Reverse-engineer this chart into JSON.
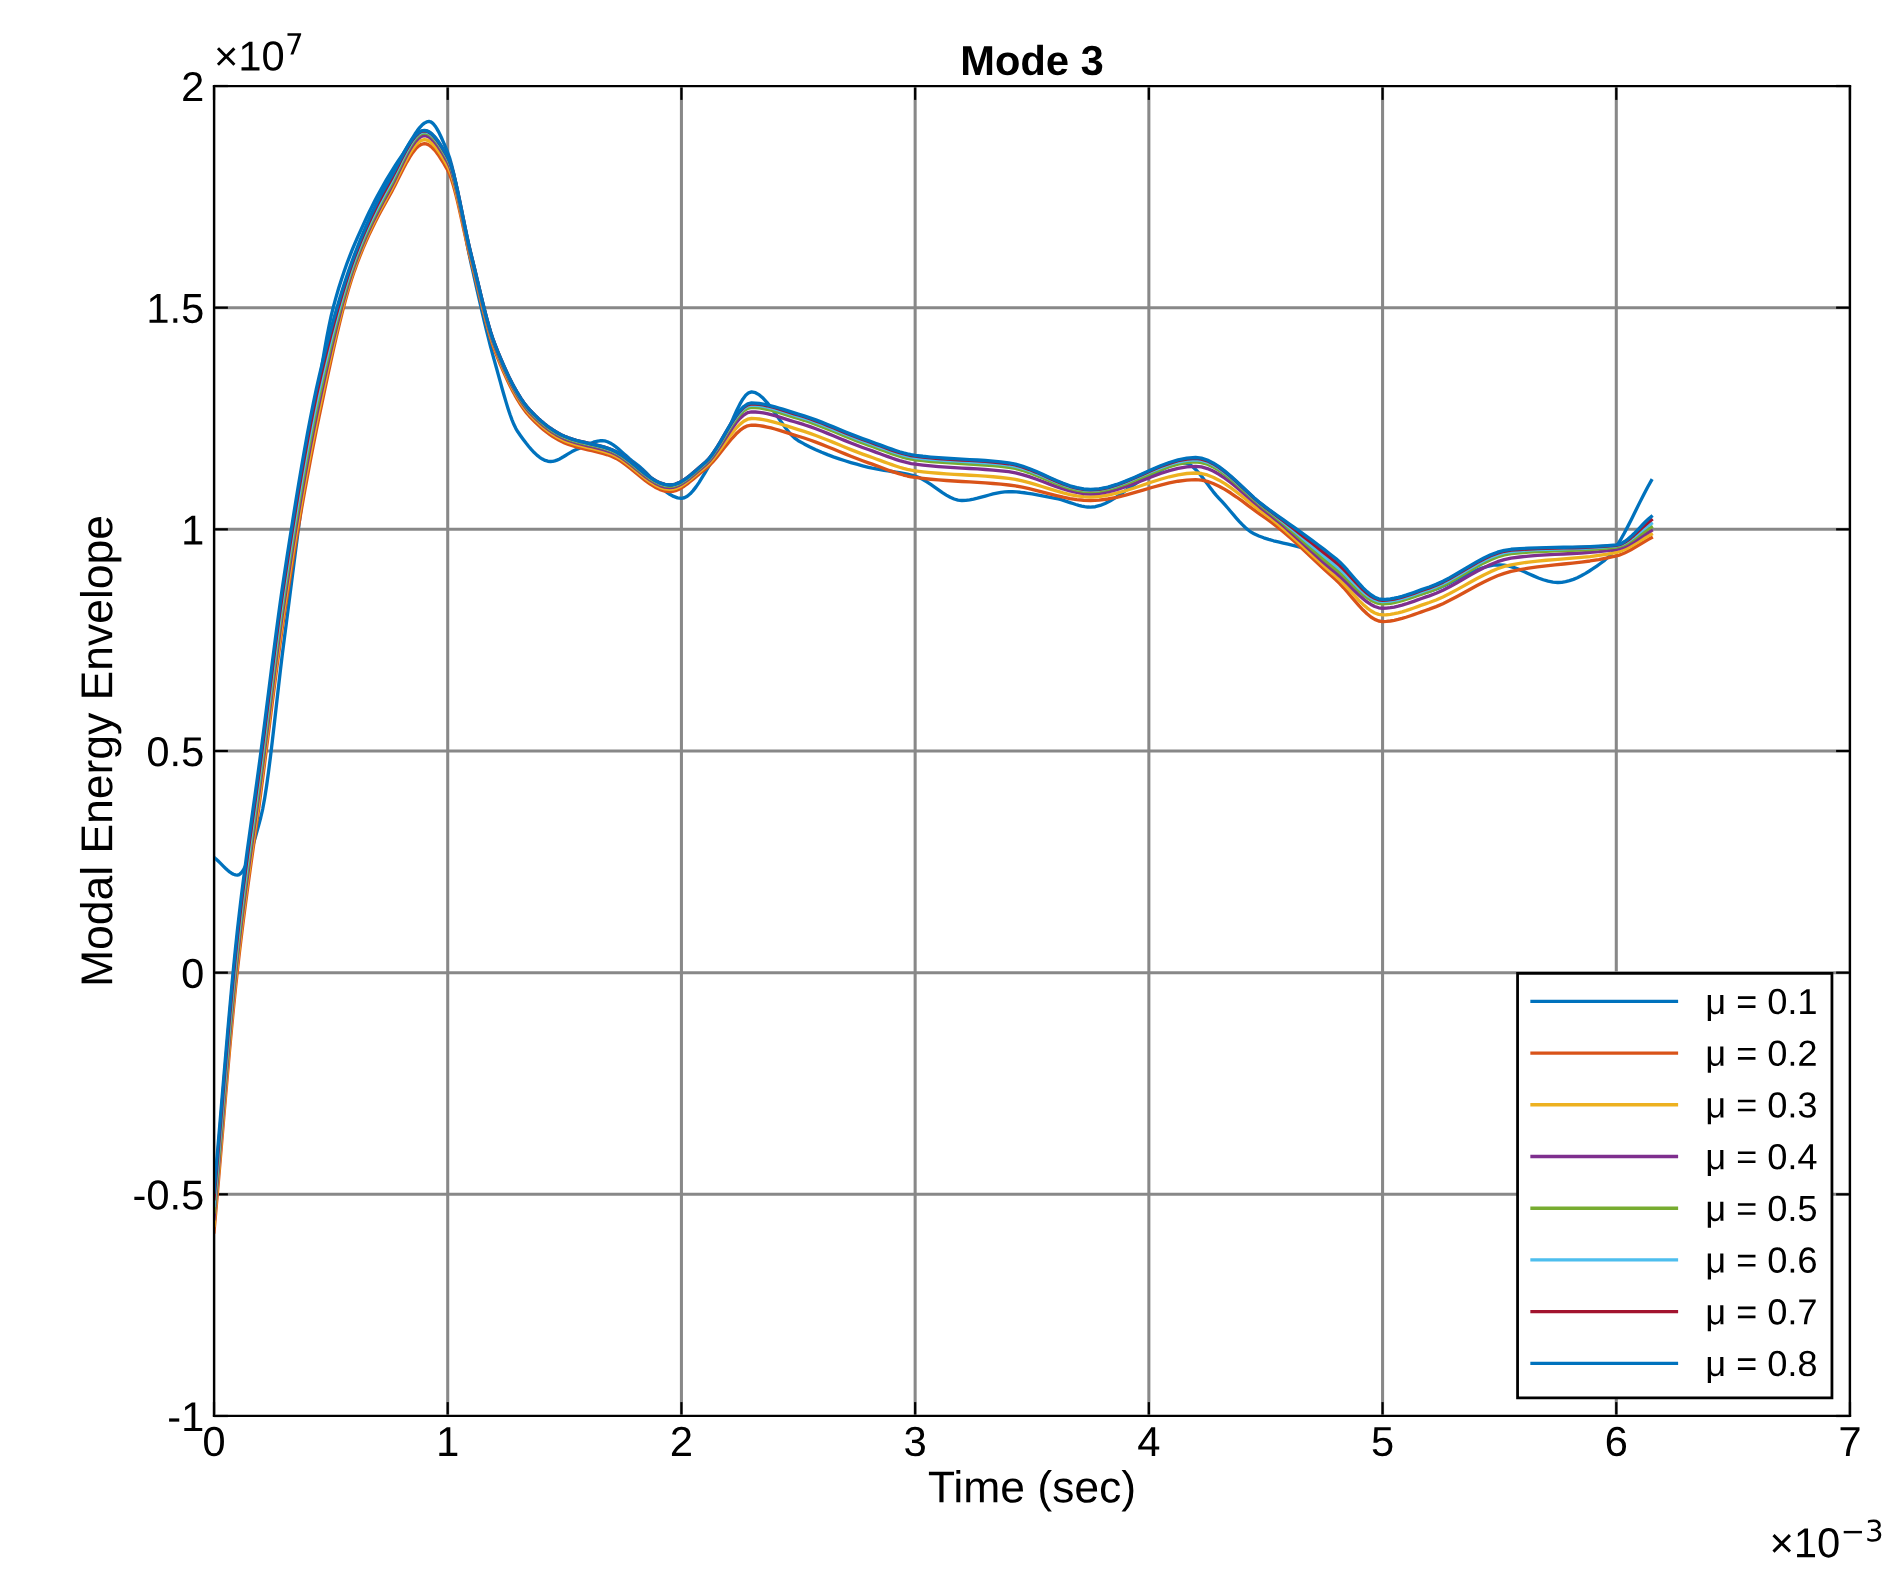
{
  "chart_data": {
    "type": "line",
    "title": "Mode 3",
    "xlabel": "Time (sec)",
    "ylabel": "Modal Energy Envelope",
    "annotations": [
      "×10$^{7}$",
      "×10$^{−3}$"
    ],
    "x": [
      0,
      0.1,
      0.2,
      0.3,
      0.45,
      0.6,
      0.75,
      0.9,
      1.0,
      1.1,
      1.2,
      1.35,
      1.5,
      1.7,
      1.95,
      2.1,
      2.3,
      2.5,
      2.8,
      3.0,
      3.4,
      3.75,
      4.2,
      4.5,
      4.8,
      5.0,
      5.2,
      5.55,
      6.0,
      6.15
    ],
    "series": [
      {
        "name": "μ = 0.1",
        "color": "#0072bd",
        "x": [
          0,
          0.1,
          0.2,
          0.3,
          0.4,
          0.51,
          0.65,
          0.8,
          0.92,
          1.0,
          1.1,
          1.2,
          1.3,
          1.44,
          1.55,
          1.66,
          1.8,
          2.0,
          2.15,
          2.3,
          2.5,
          2.8,
          3.0,
          3.2,
          3.4,
          3.6,
          3.75,
          4.0,
          4.15,
          4.3,
          4.45,
          4.7,
          5.0,
          5.2,
          5.5,
          5.75,
          5.95,
          6.15
        ],
        "values": [
          0.26,
          0.22,
          0.35,
          0.75,
          1.15,
          1.5,
          1.7,
          1.84,
          1.92,
          1.85,
          1.6,
          1.38,
          1.22,
          1.153,
          1.18,
          1.2,
          1.15,
          1.07,
          1.17,
          1.31,
          1.2,
          1.14,
          1.12,
          1.065,
          1.085,
          1.07,
          1.05,
          1.12,
          1.15,
          1.07,
          0.99,
          0.95,
          0.835,
          0.86,
          0.92,
          0.88,
          0.93,
          1.11
        ]
      },
      {
        "name": "μ = 0.2",
        "color": "#d95319",
        "values": [
          -0.585,
          0.005,
          0.405,
          0.805,
          1.255,
          1.582,
          1.752,
          1.87,
          1.81,
          1.605,
          1.405,
          1.255,
          1.195,
          1.165,
          1.085,
          1.135,
          1.235,
          1.21,
          1.15,
          1.117,
          1.1,
          1.065,
          1.112,
          1.025,
          0.886,
          0.792,
          0.82,
          0.905,
          0.94,
          0.981
        ]
      },
      {
        "name": "μ = 0.3",
        "color": "#edb120",
        "values": [
          -0.57,
          0.02,
          0.42,
          0.82,
          1.27,
          1.588,
          1.758,
          1.879,
          1.819,
          1.61,
          1.41,
          1.26,
          1.2,
          1.17,
          1.09,
          1.14,
          1.25,
          1.225,
          1.165,
          1.132,
          1.115,
          1.073,
          1.127,
          1.033,
          0.894,
          0.807,
          0.835,
          0.92,
          0.948,
          0.989
        ]
      },
      {
        "name": "μ = 0.4",
        "color": "#7e2f8e",
        "values": [
          -0.555,
          0.035,
          0.435,
          0.835,
          1.285,
          1.594,
          1.764,
          1.888,
          1.828,
          1.614,
          1.414,
          1.264,
          1.204,
          1.174,
          1.094,
          1.144,
          1.265,
          1.24,
          1.18,
          1.147,
          1.13,
          1.08,
          1.142,
          1.04,
          0.902,
          0.822,
          0.85,
          0.935,
          0.955,
          0.997
        ]
      },
      {
        "name": "μ = 0.5",
        "color": "#77ac30",
        "values": [
          -0.54,
          0.05,
          0.45,
          0.85,
          1.3,
          1.6,
          1.77,
          1.894,
          1.834,
          1.617,
          1.417,
          1.267,
          1.207,
          1.177,
          1.097,
          1.147,
          1.275,
          1.25,
          1.19,
          1.157,
          1.14,
          1.085,
          1.152,
          1.045,
          0.91,
          0.832,
          0.86,
          0.945,
          0.96,
          1.005
        ]
      },
      {
        "name": "μ = 0.6",
        "color": "#4dbeee",
        "values": [
          -0.525,
          0.065,
          0.465,
          0.865,
          1.315,
          1.606,
          1.776,
          1.897,
          1.837,
          1.619,
          1.419,
          1.269,
          1.209,
          1.179,
          1.099,
          1.149,
          1.28,
          1.255,
          1.195,
          1.162,
          1.145,
          1.088,
          1.157,
          1.048,
          0.918,
          0.837,
          0.865,
          0.95,
          0.963,
          1.013
        ]
      },
      {
        "name": "μ = 0.7",
        "color": "#a2142f",
        "values": [
          -0.51,
          0.08,
          0.48,
          0.88,
          1.33,
          1.612,
          1.782,
          1.899,
          1.839,
          1.62,
          1.42,
          1.27,
          1.21,
          1.18,
          1.1,
          1.15,
          1.283,
          1.258,
          1.198,
          1.165,
          1.148,
          1.089,
          1.16,
          1.049,
          0.926,
          0.84,
          0.868,
          0.953,
          0.964,
          1.021
        ]
      },
      {
        "name": "μ = 0.8",
        "color": "#0072bd",
        "values": [
          -0.495,
          0.095,
          0.495,
          0.895,
          1.345,
          1.618,
          1.788,
          1.9,
          1.84,
          1.62,
          1.42,
          1.27,
          1.21,
          1.18,
          1.1,
          1.15,
          1.285,
          1.26,
          1.2,
          1.167,
          1.15,
          1.09,
          1.162,
          1.05,
          0.934,
          0.842,
          0.87,
          0.955,
          0.965,
          1.029
        ]
      }
    ],
    "xlim": [
      0,
      7
    ],
    "xticks": [
      0,
      1,
      2,
      3,
      4,
      5,
      6,
      7
    ],
    "ylim": [
      -1,
      2
    ],
    "yticks": [
      -1,
      -0.5,
      0,
      0.5,
      1,
      1.5,
      2
    ],
    "grid": true,
    "legend": "bottom right",
    "marker": "none",
    "line_style": "solid"
  }
}
